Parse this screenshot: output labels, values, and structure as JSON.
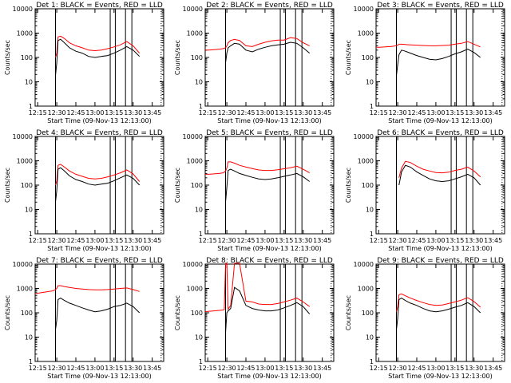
{
  "figure": {
    "x_label": "Start Time (09-Nov-13 12:13:00)",
    "y_label": "Counts/sec",
    "x_ticks": [
      "12:15",
      "12:30",
      "12:45",
      "13:00",
      "13:15",
      "13:30",
      "13:45"
    ],
    "y_ticks": [
      "1",
      "10",
      "100",
      "1000",
      "10000"
    ],
    "colors": {
      "events": "#000000",
      "lld": "#ff0000",
      "frame": "#000000"
    }
  },
  "chart_data": [
    {
      "type": "line",
      "title": "Det 1: BLACK = Events, RED = LLD",
      "x": [
        "12:13",
        "12:16",
        "12:20",
        "12:24",
        "12:27",
        "12:28",
        "12:29",
        "12:30",
        "12:31",
        "12:33",
        "12:36",
        "12:40",
        "12:45",
        "12:50",
        "12:55",
        "13:00",
        "13:05",
        "13:10",
        "13:15",
        "13:20",
        "13:25",
        "13:30",
        "13:35"
      ],
      "series": [
        {
          "name": "BLACK = Events",
          "values": [
            null,
            null,
            null,
            null,
            null,
            null,
            18,
            60,
            500,
            560,
            400,
            250,
            180,
            150,
            110,
            100,
            110,
            120,
            150,
            200,
            280,
            200,
            110
          ]
        },
        {
          "name": "RED = LLD",
          "values": [
            null,
            null,
            null,
            null,
            null,
            null,
            100,
            150,
            700,
            750,
            600,
            400,
            300,
            250,
            200,
            190,
            200,
            230,
            270,
            330,
            450,
            300,
            150
          ]
        }
      ],
      "vlines": [
        "12:29",
        "13:12",
        "13:16",
        "13:24",
        "13:29"
      ],
      "ylim": [
        1,
        10000
      ],
      "yscale": "log"
    },
    {
      "type": "line",
      "title": "Det 2: BLACK = Events, RED = LLD",
      "x": [
        "12:13",
        "12:16",
        "12:20",
        "12:24",
        "12:27",
        "12:28",
        "12:29",
        "12:30",
        "12:31",
        "12:33",
        "12:36",
        "12:40",
        "12:45",
        "12:50",
        "12:55",
        "13:00",
        "13:05",
        "13:10",
        "13:15",
        "13:20",
        "13:25",
        "13:30",
        "13:35"
      ],
      "series": [
        {
          "name": "BLACK = Events",
          "values": [
            null,
            null,
            null,
            null,
            null,
            null,
            60,
            150,
            250,
            300,
            380,
            350,
            200,
            170,
            220,
            260,
            300,
            330,
            350,
            420,
            380,
            250,
            150
          ]
        },
        {
          "name": "RED = LLD",
          "values": [
            200,
            200,
            210,
            220,
            230,
            240,
            250,
            300,
            400,
            500,
            550,
            500,
            300,
            280,
            350,
            420,
            480,
            520,
            520,
            650,
            600,
            400,
            300
          ]
        }
      ],
      "vlines": [
        "12:29",
        "13:12",
        "13:16",
        "13:24",
        "13:29"
      ],
      "ylim": [
        1,
        10000
      ],
      "yscale": "log"
    },
    {
      "type": "line",
      "title": "Det 3: BLACK = Events, RED = LLD",
      "x": [
        "12:13",
        "12:16",
        "12:20",
        "12:24",
        "12:27",
        "12:28",
        "12:29",
        "12:30",
        "12:31",
        "12:33",
        "12:36",
        "12:40",
        "12:45",
        "12:50",
        "12:55",
        "13:00",
        "13:05",
        "13:10",
        "13:15",
        "13:20",
        "13:25",
        "13:30",
        "13:35"
      ],
      "series": [
        {
          "name": "BLACK = Events",
          "values": [
            null,
            null,
            null,
            null,
            null,
            null,
            18,
            50,
            130,
            200,
            180,
            150,
            120,
            100,
            85,
            80,
            90,
            110,
            140,
            170,
            220,
            160,
            100
          ]
        },
        {
          "name": "RED = LLD",
          "values": [
            260,
            260,
            270,
            280,
            290,
            300,
            300,
            320,
            350,
            350,
            340,
            330,
            320,
            310,
            300,
            300,
            310,
            320,
            350,
            380,
            450,
            350,
            270
          ]
        }
      ],
      "vlines": [
        "12:29",
        "13:12",
        "13:16",
        "13:24",
        "13:29"
      ],
      "ylim": [
        1,
        10000
      ],
      "yscale": "log"
    },
    {
      "type": "line",
      "title": "Det 4: BLACK = Events, RED = LLD",
      "x": [
        "12:13",
        "12:16",
        "12:20",
        "12:24",
        "12:27",
        "12:28",
        "12:29",
        "12:30",
        "12:31",
        "12:33",
        "12:36",
        "12:40",
        "12:45",
        "12:50",
        "12:55",
        "13:00",
        "13:05",
        "13:10",
        "13:15",
        "13:20",
        "13:25",
        "13:30",
        "13:35"
      ],
      "series": [
        {
          "name": "BLACK = Events",
          "values": [
            null,
            null,
            null,
            null,
            null,
            null,
            20,
            60,
            450,
            520,
            380,
            240,
            170,
            140,
            110,
            100,
            110,
            120,
            150,
            200,
            260,
            190,
            100
          ]
        },
        {
          "name": "RED = LLD",
          "values": [
            null,
            null,
            null,
            null,
            null,
            null,
            100,
            150,
            650,
            720,
            550,
            380,
            280,
            230,
            190,
            180,
            190,
            220,
            260,
            320,
            420,
            290,
            140
          ]
        }
      ],
      "vlines": [
        "12:29",
        "13:12",
        "13:16",
        "13:24",
        "13:29"
      ],
      "ylim": [
        1,
        10000
      ],
      "yscale": "log"
    },
    {
      "type": "line",
      "title": "Det 5: BLACK = Events, RED = LLD",
      "x": [
        "12:13",
        "12:16",
        "12:20",
        "12:24",
        "12:27",
        "12:28",
        "12:29",
        "12:30",
        "12:31",
        "12:33",
        "12:36",
        "12:40",
        "12:45",
        "12:50",
        "12:55",
        "13:00",
        "13:05",
        "13:10",
        "13:15",
        "13:20",
        "13:25",
        "13:30",
        "13:35"
      ],
      "series": [
        {
          "name": "BLACK = Events",
          "values": [
            null,
            null,
            null,
            null,
            null,
            null,
            20,
            80,
            400,
            450,
            380,
            300,
            250,
            210,
            180,
            170,
            180,
            200,
            230,
            260,
            300,
            220,
            140
          ]
        },
        {
          "name": "RED = LLD",
          "values": [
            280,
            280,
            290,
            300,
            320,
            340,
            380,
            500,
            900,
            900,
            800,
            650,
            550,
            480,
            420,
            400,
            400,
            430,
            470,
            520,
            600,
            450,
            320
          ]
        }
      ],
      "vlines": [
        "12:29",
        "13:12",
        "13:16",
        "13:24",
        "13:29"
      ],
      "ylim": [
        1,
        10000
      ],
      "yscale": "log"
    },
    {
      "type": "line",
      "title": "Det 6: BLACK = Events, RED = LLD",
      "x": [
        "12:13",
        "12:16",
        "12:20",
        "12:24",
        "12:27",
        "12:28",
        "12:29",
        "12:30",
        "12:31",
        "12:33",
        "12:36",
        "12:40",
        "12:45",
        "12:50",
        "12:55",
        "13:00",
        "13:05",
        "13:10",
        "13:15",
        "13:20",
        "13:25",
        "13:30",
        "13:35"
      ],
      "series": [
        {
          "name": "BLACK = Events",
          "values": [
            null,
            null,
            null,
            null,
            null,
            null,
            null,
            null,
            100,
            350,
            650,
            550,
            350,
            250,
            180,
            150,
            140,
            150,
            180,
            220,
            280,
            200,
            100
          ]
        },
        {
          "name": "RED = LLD",
          "values": [
            null,
            null,
            null,
            null,
            null,
            null,
            null,
            null,
            200,
            500,
            950,
            850,
            600,
            450,
            380,
            330,
            320,
            340,
            400,
            450,
            550,
            380,
            220
          ]
        }
      ],
      "vlines": [
        "12:29",
        "13:12",
        "13:16",
        "13:24",
        "13:29"
      ],
      "ylim": [
        1,
        10000
      ],
      "yscale": "log"
    },
    {
      "type": "line",
      "title": "Det 7: BLACK = Events, RED = LLD",
      "x": [
        "12:13",
        "12:16",
        "12:20",
        "12:24",
        "12:27",
        "12:28",
        "12:29",
        "12:30",
        "12:31",
        "12:33",
        "12:36",
        "12:40",
        "12:45",
        "12:50",
        "12:55",
        "13:00",
        "13:05",
        "13:10",
        "13:15",
        "13:20",
        "13:25",
        "13:30",
        "13:35"
      ],
      "series": [
        {
          "name": "BLACK = Events",
          "values": [
            null,
            null,
            null,
            null,
            null,
            null,
            20,
            50,
            350,
            400,
            320,
            250,
            200,
            160,
            130,
            110,
            120,
            140,
            180,
            200,
            250,
            180,
            100
          ]
        },
        {
          "name": "RED = LLD",
          "values": [
            600,
            650,
            700,
            750,
            800,
            850,
            900,
            1000,
            1300,
            1300,
            1200,
            1100,
            1000,
            950,
            900,
            880,
            880,
            900,
            950,
            1000,
            1050,
            900,
            750
          ]
        }
      ],
      "vlines": [
        "12:29",
        "13:12",
        "13:16",
        "13:24",
        "13:29"
      ],
      "ylim": [
        1,
        10000
      ],
      "yscale": "log"
    },
    {
      "type": "line",
      "title": "Det 8: BLACK = Events, RED = LLD",
      "x": [
        "12:13",
        "12:16",
        "12:20",
        "12:24",
        "12:27",
        "12:28",
        "12:29",
        "12:30",
        "12:31",
        "12:33",
        "12:36",
        "12:40",
        "12:45",
        "12:50",
        "12:55",
        "13:00",
        "13:05",
        "13:10",
        "13:15",
        "13:20",
        "13:25",
        "13:30",
        "13:35"
      ],
      "series": [
        {
          "name": "BLACK = Events",
          "values": [
            null,
            null,
            null,
            null,
            null,
            null,
            15,
            100,
            120,
            150,
            1100,
            800,
            200,
            150,
            130,
            120,
            120,
            130,
            160,
            200,
            260,
            180,
            90
          ]
        },
        {
          "name": "RED = LLD",
          "values": [
            110,
            115,
            120,
            125,
            130,
            135,
            12000,
            12000,
            140,
            200,
            12000,
            12000,
            300,
            280,
            230,
            220,
            220,
            240,
            280,
            330,
            400,
            280,
            180
          ]
        }
      ],
      "vlines": [
        "12:29",
        "13:12",
        "13:16",
        "13:24",
        "13:29"
      ],
      "ylim": [
        1,
        10000
      ],
      "yscale": "log"
    },
    {
      "type": "line",
      "title": "Det 9: BLACK = Events, RED = LLD",
      "x": [
        "12:13",
        "12:16",
        "12:20",
        "12:24",
        "12:27",
        "12:28",
        "12:29",
        "12:30",
        "12:31",
        "12:33",
        "12:36",
        "12:40",
        "12:45",
        "12:50",
        "12:55",
        "13:00",
        "13:05",
        "13:10",
        "13:15",
        "13:20",
        "13:25",
        "13:30",
        "13:35"
      ],
      "series": [
        {
          "name": "BLACK = Events",
          "values": [
            null,
            null,
            null,
            null,
            null,
            null,
            20,
            60,
            350,
            400,
            320,
            250,
            200,
            150,
            120,
            110,
            120,
            140,
            170,
            200,
            260,
            180,
            100
          ]
        },
        {
          "name": "RED = LLD",
          "values": [
            null,
            null,
            null,
            null,
            null,
            null,
            110,
            180,
            550,
            600,
            500,
            400,
            320,
            260,
            220,
            200,
            210,
            240,
            280,
            330,
            420,
            290,
            170
          ]
        }
      ],
      "vlines": [
        "12:29",
        "13:12",
        "13:16",
        "13:24",
        "13:29"
      ],
      "ylim": [
        1,
        10000
      ],
      "yscale": "log"
    }
  ]
}
